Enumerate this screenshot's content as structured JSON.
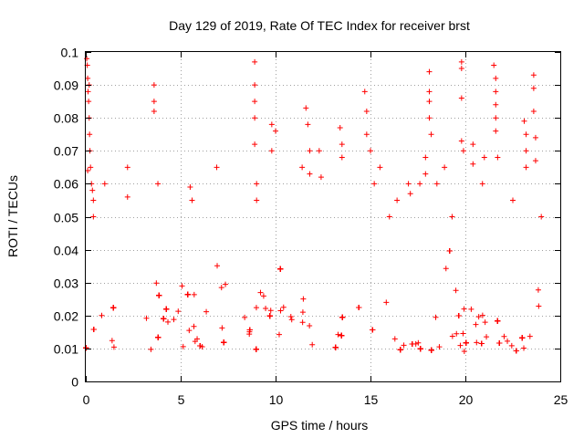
{
  "chart_data": {
    "type": "scatter",
    "title": "Day 129 of 2019, Rate Of TEC Index for receiver brst",
    "xlabel": "GPS time / hours",
    "ylabel": "ROTI / TECUs",
    "xlim": [
      0,
      25
    ],
    "ylim": [
      0,
      0.1
    ],
    "x_ticks": [
      "0",
      "5",
      "10",
      "15",
      "20",
      "25"
    ],
    "y_ticks": [
      "0",
      "0.01",
      "0.02",
      "0.03",
      "0.04",
      "0.05",
      "0.06",
      "0.07",
      "0.08",
      "0.09",
      "0.1"
    ],
    "x_tick_values": [
      0,
      5,
      10,
      15,
      20,
      25
    ],
    "y_tick_values": [
      0,
      0.01,
      0.02,
      0.03,
      0.04,
      0.05,
      0.06,
      0.07,
      0.08,
      0.09,
      0.1
    ],
    "grid": true,
    "marker": "plus",
    "color": "#ff0000",
    "x_coverage": [
      0,
      24
    ],
    "typical_range": [
      0.005,
      0.035
    ],
    "series": [
      {
        "name": "",
        "points": [
          [
            0.05,
            0.098
          ],
          [
            0.08,
            0.096
          ],
          [
            0.1,
            0.092
          ],
          [
            0.12,
            0.088
          ],
          [
            0.15,
            0.085
          ],
          [
            0.18,
            0.08
          ],
          [
            0.2,
            0.075
          ],
          [
            0.22,
            0.07
          ],
          [
            0.25,
            0.065
          ],
          [
            0.3,
            0.06
          ],
          [
            0.35,
            0.058
          ],
          [
            0.4,
            0.055
          ],
          [
            0.18,
            0.09
          ],
          [
            0.1,
            0.064
          ],
          [
            0.4,
            0.05
          ],
          [
            1.0,
            0.06
          ],
          [
            2.2,
            0.065
          ],
          [
            2.2,
            0.056
          ],
          [
            3.6,
            0.09
          ],
          [
            3.6,
            0.085
          ],
          [
            3.6,
            0.082
          ],
          [
            3.8,
            0.06
          ],
          [
            5.5,
            0.059
          ],
          [
            5.6,
            0.055
          ],
          [
            6.9,
            0.065
          ],
          [
            8.9,
            0.097
          ],
          [
            8.9,
            0.09
          ],
          [
            8.9,
            0.085
          ],
          [
            8.9,
            0.08
          ],
          [
            8.9,
            0.072
          ],
          [
            9.0,
            0.06
          ],
          [
            9.0,
            0.055
          ],
          [
            9.8,
            0.078
          ],
          [
            9.8,
            0.07
          ],
          [
            10.0,
            0.076
          ],
          [
            11.4,
            0.065
          ],
          [
            11.6,
            0.083
          ],
          [
            11.7,
            0.078
          ],
          [
            11.8,
            0.07
          ],
          [
            11.8,
            0.063
          ],
          [
            12.3,
            0.07
          ],
          [
            12.4,
            0.062
          ],
          [
            13.4,
            0.077
          ],
          [
            13.5,
            0.072
          ],
          [
            13.5,
            0.068
          ],
          [
            14.7,
            0.088
          ],
          [
            14.8,
            0.082
          ],
          [
            14.8,
            0.075
          ],
          [
            15.0,
            0.07
          ],
          [
            15.2,
            0.06
          ],
          [
            15.5,
            0.065
          ],
          [
            16.0,
            0.05
          ],
          [
            16.4,
            0.055
          ],
          [
            17.0,
            0.06
          ],
          [
            17.1,
            0.057
          ],
          [
            17.6,
            0.06
          ],
          [
            17.9,
            0.068
          ],
          [
            17.9,
            0.063
          ],
          [
            18.1,
            0.094
          ],
          [
            18.1,
            0.088
          ],
          [
            18.1,
            0.085
          ],
          [
            18.1,
            0.08
          ],
          [
            18.2,
            0.075
          ],
          [
            18.5,
            0.06
          ],
          [
            18.9,
            0.065
          ],
          [
            19.3,
            0.05
          ],
          [
            19.8,
            0.097
          ],
          [
            19.8,
            0.095
          ],
          [
            19.8,
            0.086
          ],
          [
            19.8,
            0.073
          ],
          [
            19.9,
            0.07
          ],
          [
            20.4,
            0.072
          ],
          [
            20.4,
            0.066
          ],
          [
            20.9,
            0.06
          ],
          [
            21.0,
            0.068
          ],
          [
            21.5,
            0.096
          ],
          [
            21.6,
            0.092
          ],
          [
            21.6,
            0.088
          ],
          [
            21.6,
            0.084
          ],
          [
            21.6,
            0.08
          ],
          [
            21.6,
            0.076
          ],
          [
            21.7,
            0.068
          ],
          [
            22.5,
            0.055
          ],
          [
            23.1,
            0.079
          ],
          [
            23.2,
            0.075
          ],
          [
            23.2,
            0.07
          ],
          [
            23.2,
            0.065
          ],
          [
            23.6,
            0.093
          ],
          [
            23.6,
            0.089
          ],
          [
            23.6,
            0.082
          ],
          [
            23.7,
            0.074
          ],
          [
            23.7,
            0.067
          ],
          [
            24.0,
            0.05
          ]
        ]
      }
    ]
  }
}
